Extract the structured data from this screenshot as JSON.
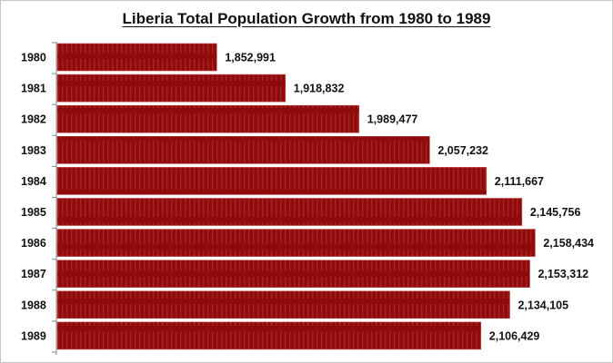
{
  "chart_data": {
    "type": "bar",
    "orientation": "horizontal",
    "title": "Liberia Total Population Growth from 1980 to 1989",
    "xlabel": "",
    "ylabel": "",
    "categories": [
      "1980",
      "1981",
      "1982",
      "1983",
      "1984",
      "1985",
      "1986",
      "1987",
      "1988",
      "1989"
    ],
    "values": [
      1852991,
      1918832,
      1989477,
      2057232,
      2111667,
      2145756,
      2158434,
      2153312,
      2134105,
      2106429
    ],
    "data_labels": [
      "1,852,991",
      "1,918,832",
      "1,989,477",
      "2,057,232",
      "2,111,667",
      "2,145,756",
      "2,158,434",
      "2,153,312",
      "2,134,105",
      "2,106,429"
    ],
    "xlim": [
      1700000,
      2200000
    ],
    "grid": false,
    "legend": "none",
    "bar_color": "#8e0b0b",
    "bar_stripe_color": "#a52020"
  }
}
